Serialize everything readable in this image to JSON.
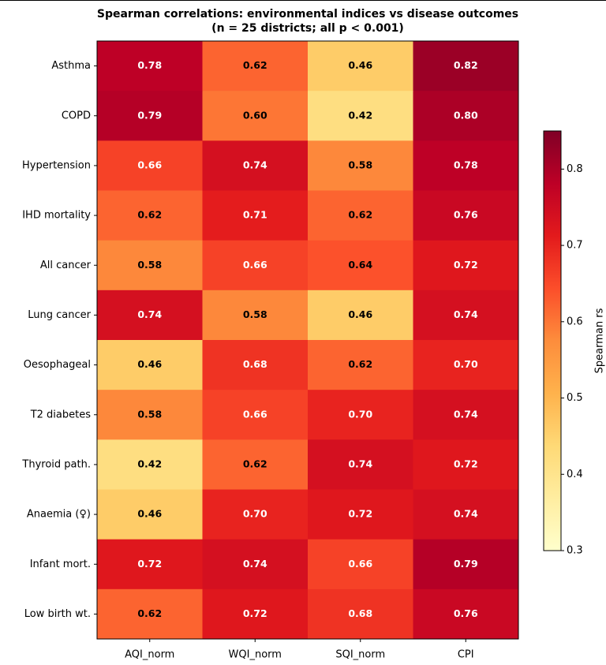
{
  "chart_data": {
    "type": "heatmap",
    "title": "Spearman correlations: environmental indices vs disease outcomes",
    "subtitle": "(n = 25 districts; all p < 0.001)",
    "x_categories": [
      "AQI_norm",
      "WQI_norm",
      "SQI_norm",
      "CPI"
    ],
    "y_categories": [
      "Asthma",
      "COPD",
      "Hypertension",
      "IHD mortality",
      "All cancer",
      "Lung cancer",
      "Oesophageal",
      "T2 diabetes",
      "Thyroid path.",
      "Anaemia (♀)",
      "Infant mort.",
      "Low birth wt."
    ],
    "values": [
      [
        0.78,
        0.62,
        0.46,
        0.82
      ],
      [
        0.79,
        0.6,
        0.42,
        0.8
      ],
      [
        0.66,
        0.74,
        0.58,
        0.78
      ],
      [
        0.62,
        0.71,
        0.62,
        0.76
      ],
      [
        0.58,
        0.66,
        0.64,
        0.72
      ],
      [
        0.74,
        0.58,
        0.46,
        0.74
      ],
      [
        0.46,
        0.68,
        0.62,
        0.7
      ],
      [
        0.58,
        0.66,
        0.7,
        0.74
      ],
      [
        0.42,
        0.62,
        0.74,
        0.72
      ],
      [
        0.46,
        0.7,
        0.72,
        0.74
      ],
      [
        0.72,
        0.74,
        0.66,
        0.79
      ],
      [
        0.62,
        0.72,
        0.68,
        0.76
      ]
    ],
    "value_labels": [
      [
        "0.78",
        "0.62",
        "0.46",
        "0.82"
      ],
      [
        "0.79",
        "0.60",
        "0.42",
        "0.80"
      ],
      [
        "0.66",
        "0.74",
        "0.58",
        "0.78"
      ],
      [
        "0.62",
        "0.71",
        "0.62",
        "0.76"
      ],
      [
        "0.58",
        "0.66",
        "0.64",
        "0.72"
      ],
      [
        "0.74",
        "0.58",
        "0.46",
        "0.74"
      ],
      [
        "0.46",
        "0.68",
        "0.62",
        "0.70"
      ],
      [
        "0.58",
        "0.66",
        "0.70",
        "0.74"
      ],
      [
        "0.42",
        "0.62",
        "0.74",
        "0.72"
      ],
      [
        "0.46",
        "0.70",
        "0.72",
        "0.74"
      ],
      [
        "0.72",
        "0.74",
        "0.66",
        "0.79"
      ],
      [
        "0.62",
        "0.72",
        "0.68",
        "0.76"
      ]
    ],
    "colormap": "YlOrRd",
    "clim": [
      0.3,
      0.85
    ],
    "cticks": [
      0.3,
      0.4,
      0.5,
      0.6,
      0.7,
      0.8
    ],
    "colorbar_label": "Spearman rs"
  }
}
